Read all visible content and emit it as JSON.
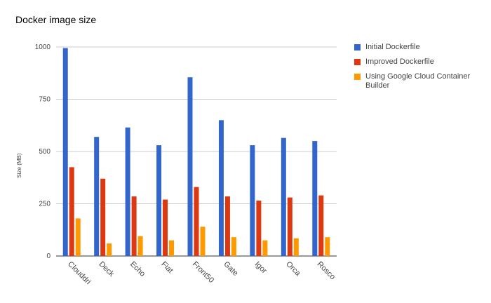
{
  "chart_data": {
    "type": "bar",
    "title": "Docker image size",
    "xlabel": "",
    "ylabel": "Size (MB)",
    "ylim": [
      0,
      1000
    ],
    "yticks": [
      0,
      250,
      500,
      750,
      1000
    ],
    "grid": true,
    "legend_position": "right",
    "categories": [
      "Clouddri",
      "Deck",
      "Echo",
      "Fiat",
      "Front50",
      "Gate",
      "Igor",
      "Orca",
      "Rosco"
    ],
    "series": [
      {
        "name": "Initial Dockerfile",
        "color": "#3366cc",
        "values": [
          995,
          570,
          615,
          530,
          855,
          650,
          530,
          565,
          550
        ]
      },
      {
        "name": "Improved Dockerfile",
        "color": "#dc3912",
        "values": [
          425,
          370,
          285,
          270,
          330,
          285,
          265,
          280,
          290
        ]
      },
      {
        "name": "Using Google Cloud Container Builder",
        "color": "#ff9900",
        "values": [
          180,
          60,
          95,
          75,
          140,
          90,
          75,
          85,
          90
        ]
      }
    ]
  }
}
